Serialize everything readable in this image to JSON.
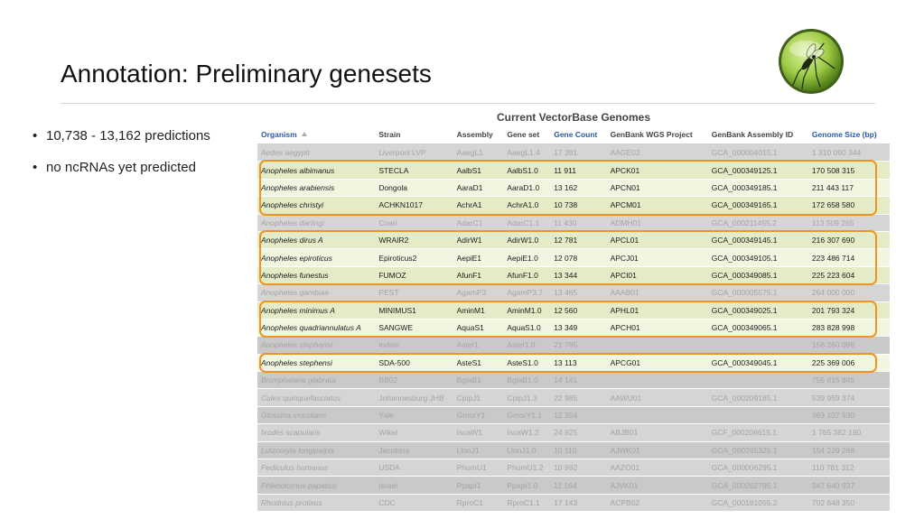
{
  "slide": {
    "title": "Annotation: Preliminary genesets",
    "bullets": [
      "10,738 - 13,162 predictions",
      "no ncRNAs yet predicted"
    ],
    "bullet_marker": "•",
    "logo_icon": "mosquito-logo-icon"
  },
  "table": {
    "caption": "Current VectorBase Genomes",
    "columns": [
      "Organism",
      "Strain",
      "Assembly",
      "Gene set",
      "Gene Count",
      "GenBank WGS Project",
      "GenBank Assembly ID",
      "Genome Size (bp)"
    ],
    "rows": [
      [
        "Aedes aegypti",
        "Liverpool LVP",
        "AaegL1",
        "AaegL1.4",
        "17 391",
        "AAGE02",
        "GCA_000004015.1",
        "1 310 090 344"
      ],
      [
        "Anopheles albimanus",
        "STECLA",
        "AalbS1",
        "AalbS1.0",
        "11 911",
        "APCK01",
        "GCA_000349125.1",
        "170 508 315"
      ],
      [
        "Anopheles arabiensis",
        "Dongola",
        "AaraD1",
        "AaraD1.0",
        "13 162",
        "APCN01",
        "GCA_000349185.1",
        "211 443 117"
      ],
      [
        "Anopheles christyi",
        "ACHKN1017",
        "AchrA1",
        "AchrA1.0",
        "10 738",
        "APCM01",
        "GCA_000349165.1",
        "172 658 580"
      ],
      [
        "Anopheles darlingi",
        "Coari",
        "AdarC1",
        "AdarC1.1",
        "11 430",
        "ADMH01",
        "GCA_000211455.2",
        "113 509 265"
      ],
      [
        "Anopheles dirus A",
        "WRAIR2",
        "AdirW1",
        "AdirW1.0",
        "12 781",
        "APCL01",
        "GCA_000349145.1",
        "216 307 690"
      ],
      [
        "Anopheles epiroticus",
        "Epiroticus2",
        "AepiE1",
        "AepiE1.0",
        "12 078",
        "APCJ01",
        "GCA_000349105.1",
        "223 486 714"
      ],
      [
        "Anopheles funestus",
        "FUMOZ",
        "AfunF1",
        "AfunF1.0",
        "13 344",
        "APCI01",
        "GCA_000349085.1",
        "225 223 604"
      ],
      [
        "Anopheles gambiae",
        "PEST",
        "AgamP3",
        "AgamP3.7",
        "13 465",
        "AAAB01",
        "GCA_000005575.1",
        "264 000 000"
      ],
      [
        "Anopheles minimus A",
        "MINIMUS1",
        "AminM1",
        "AminM1.0",
        "12 560",
        "APHL01",
        "GCA_000349025.1",
        "201 793 324"
      ],
      [
        "Anopheles quadriannulatus A",
        "SANGWE",
        "AquaS1",
        "AquaS1.0",
        "13 349",
        "APCH01",
        "GCA_000349065.1",
        "283 828 998"
      ],
      [
        "Anopheles stephensi",
        "Indian",
        "AsteI1",
        "AsteI1.0",
        "21 785",
        "",
        "",
        "156 260 098"
      ],
      [
        "Anopheles stephensi",
        "SDA-500",
        "AsteS1",
        "AsteS1.0",
        "13 113",
        "APCG01",
        "GCA_000349045.1",
        "225 369 006"
      ],
      [
        "Biomphalaria glabrata",
        "BB02",
        "BglaB1",
        "BglaB1.0",
        "14 141",
        "",
        "",
        "755 815 845"
      ],
      [
        "Culex quinquefasciatus",
        "Johannesburg JHB",
        "CpipJ1",
        "CpipJ1.3",
        "22 985",
        "AAWU01",
        "GCA_000209185.1",
        "539 959 374"
      ],
      [
        "Glossina morsitans",
        "Yale",
        "GmorY1",
        "GmorY1.1",
        "12 354",
        "",
        "",
        "363 107 930"
      ],
      [
        "Ixodes scapularis",
        "Wikel",
        "IscaW1",
        "IscaW1.2",
        "24 925",
        "ABJB01",
        "GCF_000208615.1",
        "1 765 382 190"
      ],
      [
        "Lutzomyia longipalpis",
        "Jacobina",
        "LlonJ1",
        "LlonJ1.0",
        "10 110",
        "AJWK01",
        "GCA_000265325.1",
        "154 229 266"
      ],
      [
        "Pediculus humanus",
        "USDA",
        "PhumU1",
        "PhumU1.2",
        "10 992",
        "AAZO01",
        "GCA_000006295.1",
        "110 781 312"
      ],
      [
        "Phlebotomus papatasi",
        "Israel",
        "PpapI1",
        "PpapI1.0",
        "11 164",
        "AJVK01",
        "GCA_000262795.1",
        "347 640 937"
      ],
      [
        "Rhodnius prolixus",
        "CDC",
        "RproC1",
        "RproC1.1",
        "17 143",
        "ACPB02",
        "GCA_000181055.2",
        "702 648 350"
      ]
    ],
    "highlighted_rows": [
      1,
      2,
      3,
      5,
      6,
      7,
      9,
      10,
      12
    ],
    "box_groups": [
      [
        1,
        3
      ],
      [
        5,
        7
      ],
      [
        9,
        10
      ],
      [
        12,
        12
      ]
    ],
    "highlight_color": "#f0931f"
  }
}
